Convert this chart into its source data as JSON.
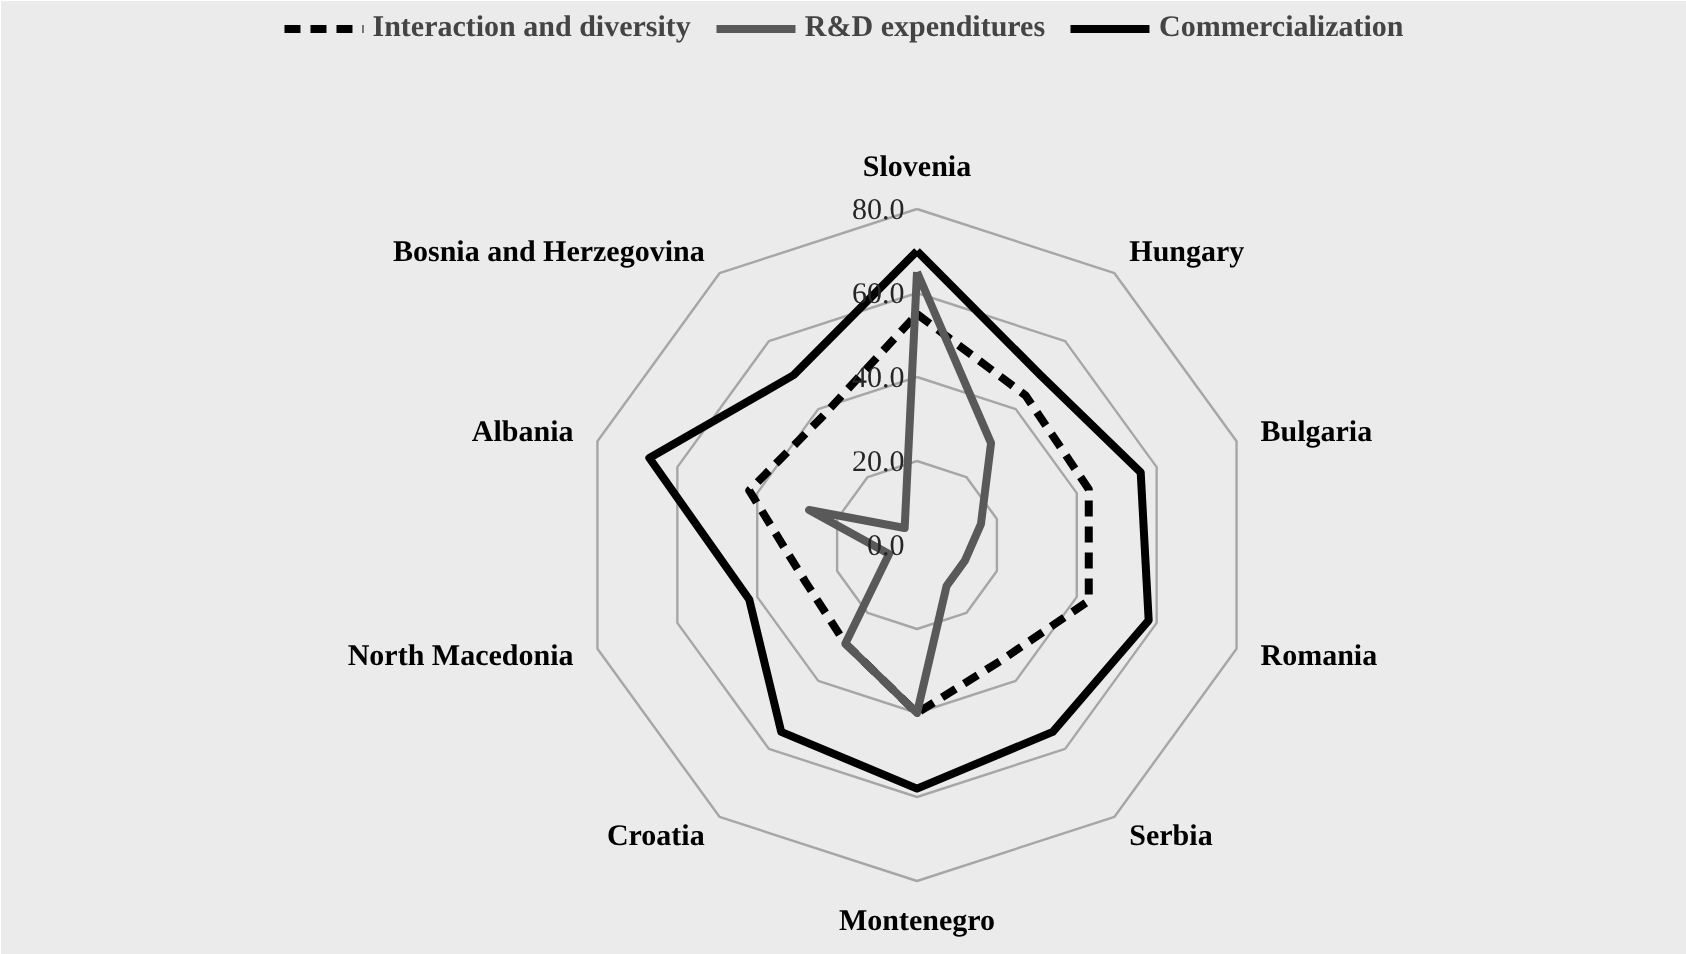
{
  "chart_data": {
    "type": "radar",
    "categories": [
      "Slovenia",
      "Hungary",
      "Bulgaria",
      "Romania",
      "Serbia",
      "Montenegro",
      "Croatia",
      "North Macedonia",
      "Albania",
      "Bosnia and Herzegovina"
    ],
    "series": [
      {
        "name": "Interaction and diversity",
        "color": "#000000",
        "line_style": "dashed",
        "values": [
          55,
          44,
          43,
          43,
          34,
          40,
          29,
          28,
          42,
          38
        ]
      },
      {
        "name": "R&D expenditures",
        "color": "#595959",
        "line_style": "solid",
        "values": [
          65,
          30,
          16,
          12,
          12,
          40,
          29,
          7,
          27,
          5
        ]
      },
      {
        "name": "Commercialization",
        "color": "#000000",
        "line_style": "solid",
        "values": [
          70,
          50,
          56,
          58,
          55,
          58,
          55,
          42,
          67,
          50
        ]
      }
    ],
    "ylim": [
      0,
      80
    ],
    "yticks": [
      {
        "value": 0,
        "label": "0.0"
      },
      {
        "value": 20,
        "label": "20.0"
      },
      {
        "value": 40,
        "label": "40.0"
      },
      {
        "value": 60,
        "label": "60.0"
      },
      {
        "value": 80,
        "label": "80.0"
      }
    ],
    "grid": true,
    "legend": "top"
  }
}
